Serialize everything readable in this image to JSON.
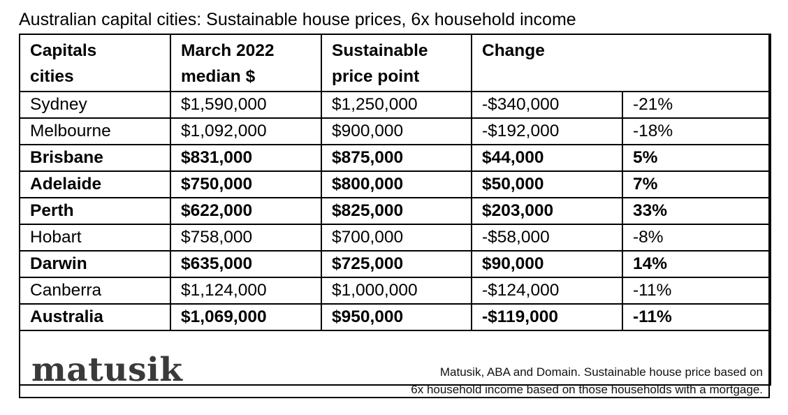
{
  "title": "Australian capital cities:  Sustainable house prices, 6x household income",
  "table": {
    "headers": [
      [
        "Capitals",
        "cities"
      ],
      [
        "March 2022",
        "median $"
      ],
      [
        "Sustainable",
        "price point"
      ],
      [
        "Change",
        ""
      ],
      [
        "",
        ""
      ]
    ],
    "rows": [
      {
        "city": "Sydney",
        "median": "$1,590,000",
        "sustainable": "$1,250,000",
        "change": "-$340,000",
        "pct": "-21%",
        "bold": false
      },
      {
        "city": "Melbourne",
        "median": "$1,092,000",
        "sustainable": "$900,000",
        "change": "-$192,000",
        "pct": "-18%",
        "bold": false
      },
      {
        "city": "Brisbane",
        "median": "$831,000",
        "sustainable": "$875,000",
        "change": "$44,000",
        "pct": "5%",
        "bold": true
      },
      {
        "city": "Adelaide",
        "median": "$750,000",
        "sustainable": "$800,000",
        "change": "$50,000",
        "pct": "7%",
        "bold": true
      },
      {
        "city": "Perth",
        "median": "$622,000",
        "sustainable": "$825,000",
        "change": "$203,000",
        "pct": "33%",
        "bold": true
      },
      {
        "city": "Hobart",
        "median": "$758,000",
        "sustainable": "$700,000",
        "change": "-$58,000",
        "pct": "-8%",
        "bold": false
      },
      {
        "city": "Darwin",
        "median": "$635,000",
        "sustainable": "$725,000",
        "change": "$90,000",
        "pct": "14%",
        "bold": true
      },
      {
        "city": "Canberra",
        "median": "$1,124,000",
        "sustainable": "$1,000,000",
        "change": "-$124,000",
        "pct": "-11%",
        "bold": false
      },
      {
        "city": "Australia",
        "median": "$1,069,000",
        "sustainable": "$950,000",
        "change": "-$119,000",
        "pct": "-11%",
        "bold": true
      }
    ]
  },
  "footer": {
    "logo": "matusik",
    "source_line1": "Matusik, ABA and Domain.  Sustainable house price based on",
    "source_line2": "6x household income based on those households with a mortgage."
  }
}
